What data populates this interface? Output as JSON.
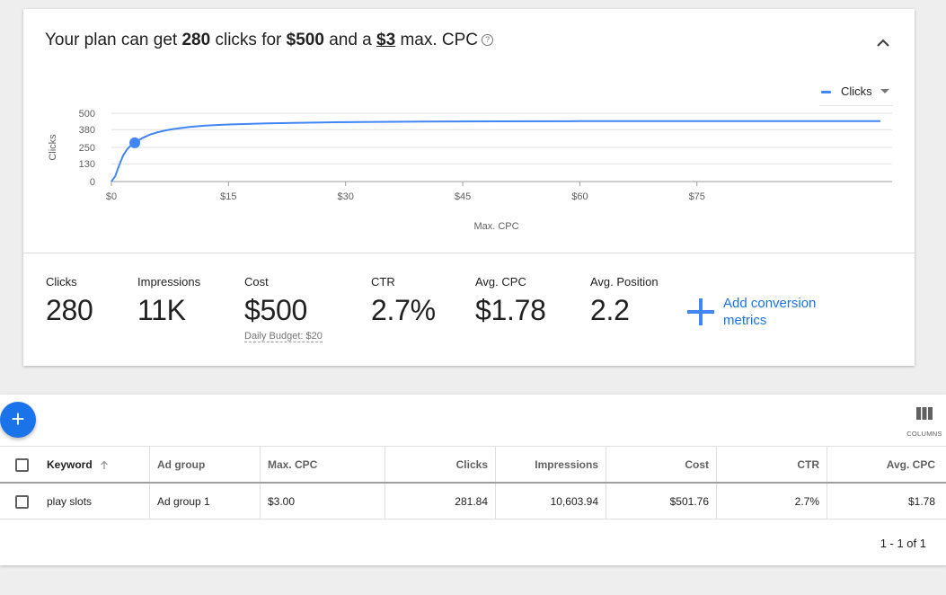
{
  "plan": {
    "headline": {
      "prefix": "Your plan can get ",
      "clicks": "280",
      "mid1": " clicks for ",
      "budget": "$500",
      "mid2": " and a ",
      "cpc": "$3",
      "suffix": " max. CPC"
    },
    "help_icon": "help-circle-icon",
    "collapse_icon": "chevron-up-icon",
    "legend_selector": {
      "label": "Clicks",
      "icon": "caret-down-icon"
    },
    "metrics": [
      {
        "label": "Clicks",
        "value": "280"
      },
      {
        "label": "Impressions",
        "value": "11K"
      },
      {
        "label": "Cost",
        "value": "$500",
        "sub": "Daily Budget: $20"
      },
      {
        "label": "CTR",
        "value": "2.7%"
      },
      {
        "label": "Avg. CPC",
        "value": "$1.78"
      },
      {
        "label": "Avg. Position",
        "value": "2.2"
      }
    ],
    "add_conversion": {
      "icon": "plus-icon",
      "line1": "Add conversion",
      "line2": "metrics"
    }
  },
  "chart_data": {
    "type": "line",
    "xlabel": "Max. CPC",
    "ylabel": "Clicks",
    "xlim": [
      0,
      100
    ],
    "ylim": [
      0,
      500
    ],
    "x_ticks": [
      "$0",
      "$15",
      "$30",
      "$45",
      "$60",
      "$75"
    ],
    "x_tick_values": [
      0,
      15,
      30,
      45,
      60,
      75
    ],
    "y_ticks": [
      "0",
      "130",
      "250",
      "380",
      "500"
    ],
    "y_tick_values": [
      0,
      130,
      250,
      380,
      500
    ],
    "grid": true,
    "legend_position": "top-right",
    "series": [
      {
        "name": "Clicks",
        "color": "#4285f4",
        "x": [
          0,
          0.5,
          1,
          1.5,
          2,
          2.5,
          3,
          4,
          5,
          6,
          7,
          8,
          10,
          12,
          15,
          20,
          25,
          30,
          40,
          50,
          60,
          70,
          80,
          90,
          98.5
        ],
        "y": [
          0,
          40,
          120,
          190,
          235,
          265,
          284,
          320,
          345,
          362,
          375,
          385,
          400,
          410,
          418,
          426,
          431,
          435,
          439,
          441,
          442,
          442,
          443,
          443,
          443
        ]
      }
    ],
    "highlight_point": {
      "x": 3,
      "y": 284
    }
  },
  "toolbar": {
    "add_icon": "plus-icon",
    "add_label": "+",
    "columns_icon": "columns-icon",
    "columns_label": "COLUMNS"
  },
  "table": {
    "headers": {
      "keyword": "Keyword",
      "ad_group": "Ad group",
      "max_cpc": "Max. CPC",
      "clicks": "Clicks",
      "impressions": "Impressions",
      "cost": "Cost",
      "ctr": "CTR",
      "avg_cpc": "Avg. CPC"
    },
    "sort_icon": "arrow-up-icon",
    "rows": [
      {
        "keyword": "play slots",
        "ad_group": "Ad group 1",
        "max_cpc": "$3.00",
        "clicks": "281.84",
        "impressions": "10,603.94",
        "cost": "$501.76",
        "ctr": "2.7%",
        "avg_cpc": "$1.78"
      }
    ],
    "pagination": "1 - 1 of 1"
  }
}
